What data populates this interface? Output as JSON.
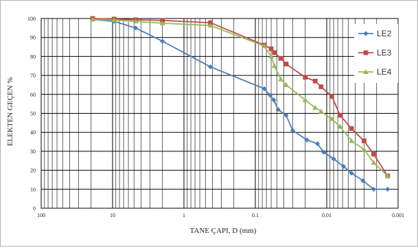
{
  "chart_data": {
    "type": "line",
    "xscale": "log",
    "xreversed": true,
    "xlim": [
      100,
      0.001
    ],
    "ylim": [
      0,
      100
    ],
    "xlabel": "TANE ÇAPI, D (mm)",
    "ylabel": "ELEKTEN GEÇEN %",
    "xtick_labels": [
      "100",
      "10",
      "1",
      "0.1",
      "0.01",
      "0.001"
    ],
    "xtick_values": [
      100,
      10,
      1,
      0.1,
      0.01,
      0.001
    ],
    "ytick_labels": [
      "0",
      "10",
      "20",
      "30",
      "40",
      "50",
      "60",
      "70",
      "80",
      "90",
      "100"
    ],
    "ytick_values": [
      0,
      10,
      20,
      30,
      40,
      50,
      60,
      70,
      80,
      90,
      100
    ],
    "grid": true,
    "legend_position": "top-right",
    "series": [
      {
        "name": "LE2",
        "color": "#4a7ebb",
        "marker": "diamond",
        "x": [
          19,
          9.5,
          4.75,
          2,
          0.425,
          0.075,
          0.062,
          0.055,
          0.048,
          0.037,
          0.03,
          0.019,
          0.0135,
          0.011,
          0.008,
          0.0058,
          0.0045,
          0.0031,
          0.0022,
          0.0014
        ],
        "y": [
          99.5,
          98.5,
          95,
          88,
          74.5,
          63,
          59.5,
          57,
          52,
          49,
          41,
          36,
          34,
          29.5,
          26,
          22,
          18.5,
          14.5,
          10,
          10
        ]
      },
      {
        "name": "LE3",
        "color": "#be4b48",
        "marker": "square",
        "x": [
          19,
          9.5,
          4.75,
          2,
          0.425,
          0.075,
          0.06,
          0.054,
          0.044,
          0.037,
          0.02,
          0.0145,
          0.012,
          0.0085,
          0.0065,
          0.0045,
          0.003,
          0.0022,
          0.0014
        ],
        "y": [
          100,
          99.7,
          99.3,
          99,
          97.8,
          86,
          84,
          82,
          79,
          76,
          69,
          67,
          64,
          59,
          49,
          42,
          35.5,
          28.5,
          17
        ]
      },
      {
        "name": "LE4",
        "color": "#98b954",
        "marker": "triangle",
        "x": [
          19,
          9.5,
          4.75,
          2,
          0.425,
          0.075,
          0.06,
          0.054,
          0.044,
          0.037,
          0.02,
          0.0145,
          0.012,
          0.0085,
          0.0065,
          0.0045,
          0.003,
          0.0022,
          0.0014
        ],
        "y": [
          99.5,
          99.2,
          98.5,
          97.5,
          96.3,
          85.5,
          80,
          75,
          68,
          65,
          57,
          53,
          51,
          47,
          43,
          35.5,
          31,
          24,
          17
        ]
      }
    ]
  }
}
